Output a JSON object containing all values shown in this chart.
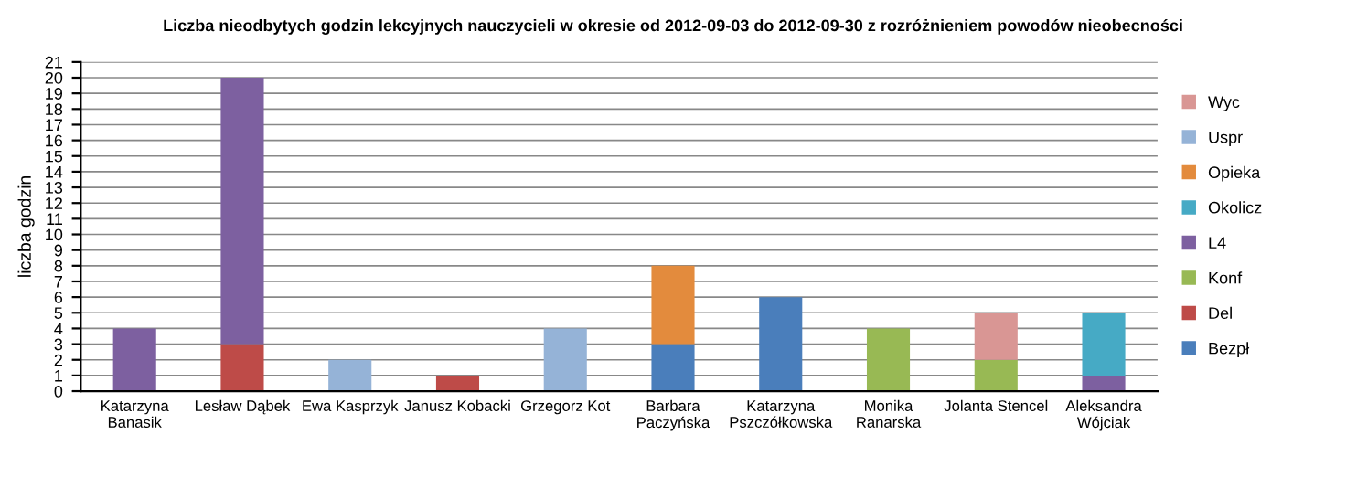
{
  "chart_data": {
    "type": "bar",
    "stacked": true,
    "title": "Liczba nieodbytych godzin lekcyjnych nauczycieli w okresie od 2012-09-03 do 2012-09-30 z rozróżnieniem powodów nieobecności",
    "ylabel": "liczba godzin",
    "categories": [
      "Katarzyna\nBanasik",
      "Lesław Dąbek",
      "Ewa Kasprzyk",
      "Janusz Kobacki",
      "Grzegorz Kot",
      "Barbara\nPaczyńska",
      "Katarzyna\nPszczółkowska",
      "Monika\nRanarska",
      "Jolanta Stencel",
      "Aleksandra\nWójciak"
    ],
    "series": [
      {
        "name": "Bezpł",
        "color": "#4a7ebb",
        "values": [
          null,
          null,
          null,
          null,
          null,
          3,
          6,
          null,
          null,
          null
        ]
      },
      {
        "name": "Del",
        "color": "#be4b48",
        "values": [
          null,
          3,
          null,
          1,
          null,
          null,
          null,
          null,
          null,
          null
        ]
      },
      {
        "name": "Konf",
        "color": "#98b954",
        "values": [
          null,
          null,
          null,
          null,
          null,
          null,
          null,
          4,
          2,
          null
        ]
      },
      {
        "name": "L4",
        "color": "#7d60a0",
        "values": [
          4,
          17,
          null,
          null,
          null,
          null,
          null,
          null,
          null,
          1
        ]
      },
      {
        "name": "Okolicz",
        "color": "#46aac5",
        "values": [
          null,
          null,
          null,
          null,
          null,
          null,
          null,
          null,
          null,
          4
        ]
      },
      {
        "name": "Opieka",
        "color": "#e38b3d",
        "values": [
          null,
          null,
          null,
          null,
          null,
          5,
          null,
          null,
          null,
          null
        ]
      },
      {
        "name": "Uspr",
        "color": "#95b3d7",
        "values": [
          null,
          null,
          2,
          null,
          4,
          null,
          null,
          null,
          null,
          null
        ]
      },
      {
        "name": "Wyc",
        "color": "#d99694",
        "values": [
          null,
          null,
          null,
          null,
          null,
          null,
          null,
          null,
          3,
          null
        ]
      }
    ],
    "ylim": [
      0,
      21
    ],
    "yticks": [
      0,
      1,
      2,
      3,
      4,
      5,
      6,
      7,
      8,
      9,
      10,
      11,
      12,
      13,
      14,
      15,
      16,
      17,
      18,
      19,
      20,
      21
    ],
    "grid": "y",
    "legend": "right"
  }
}
